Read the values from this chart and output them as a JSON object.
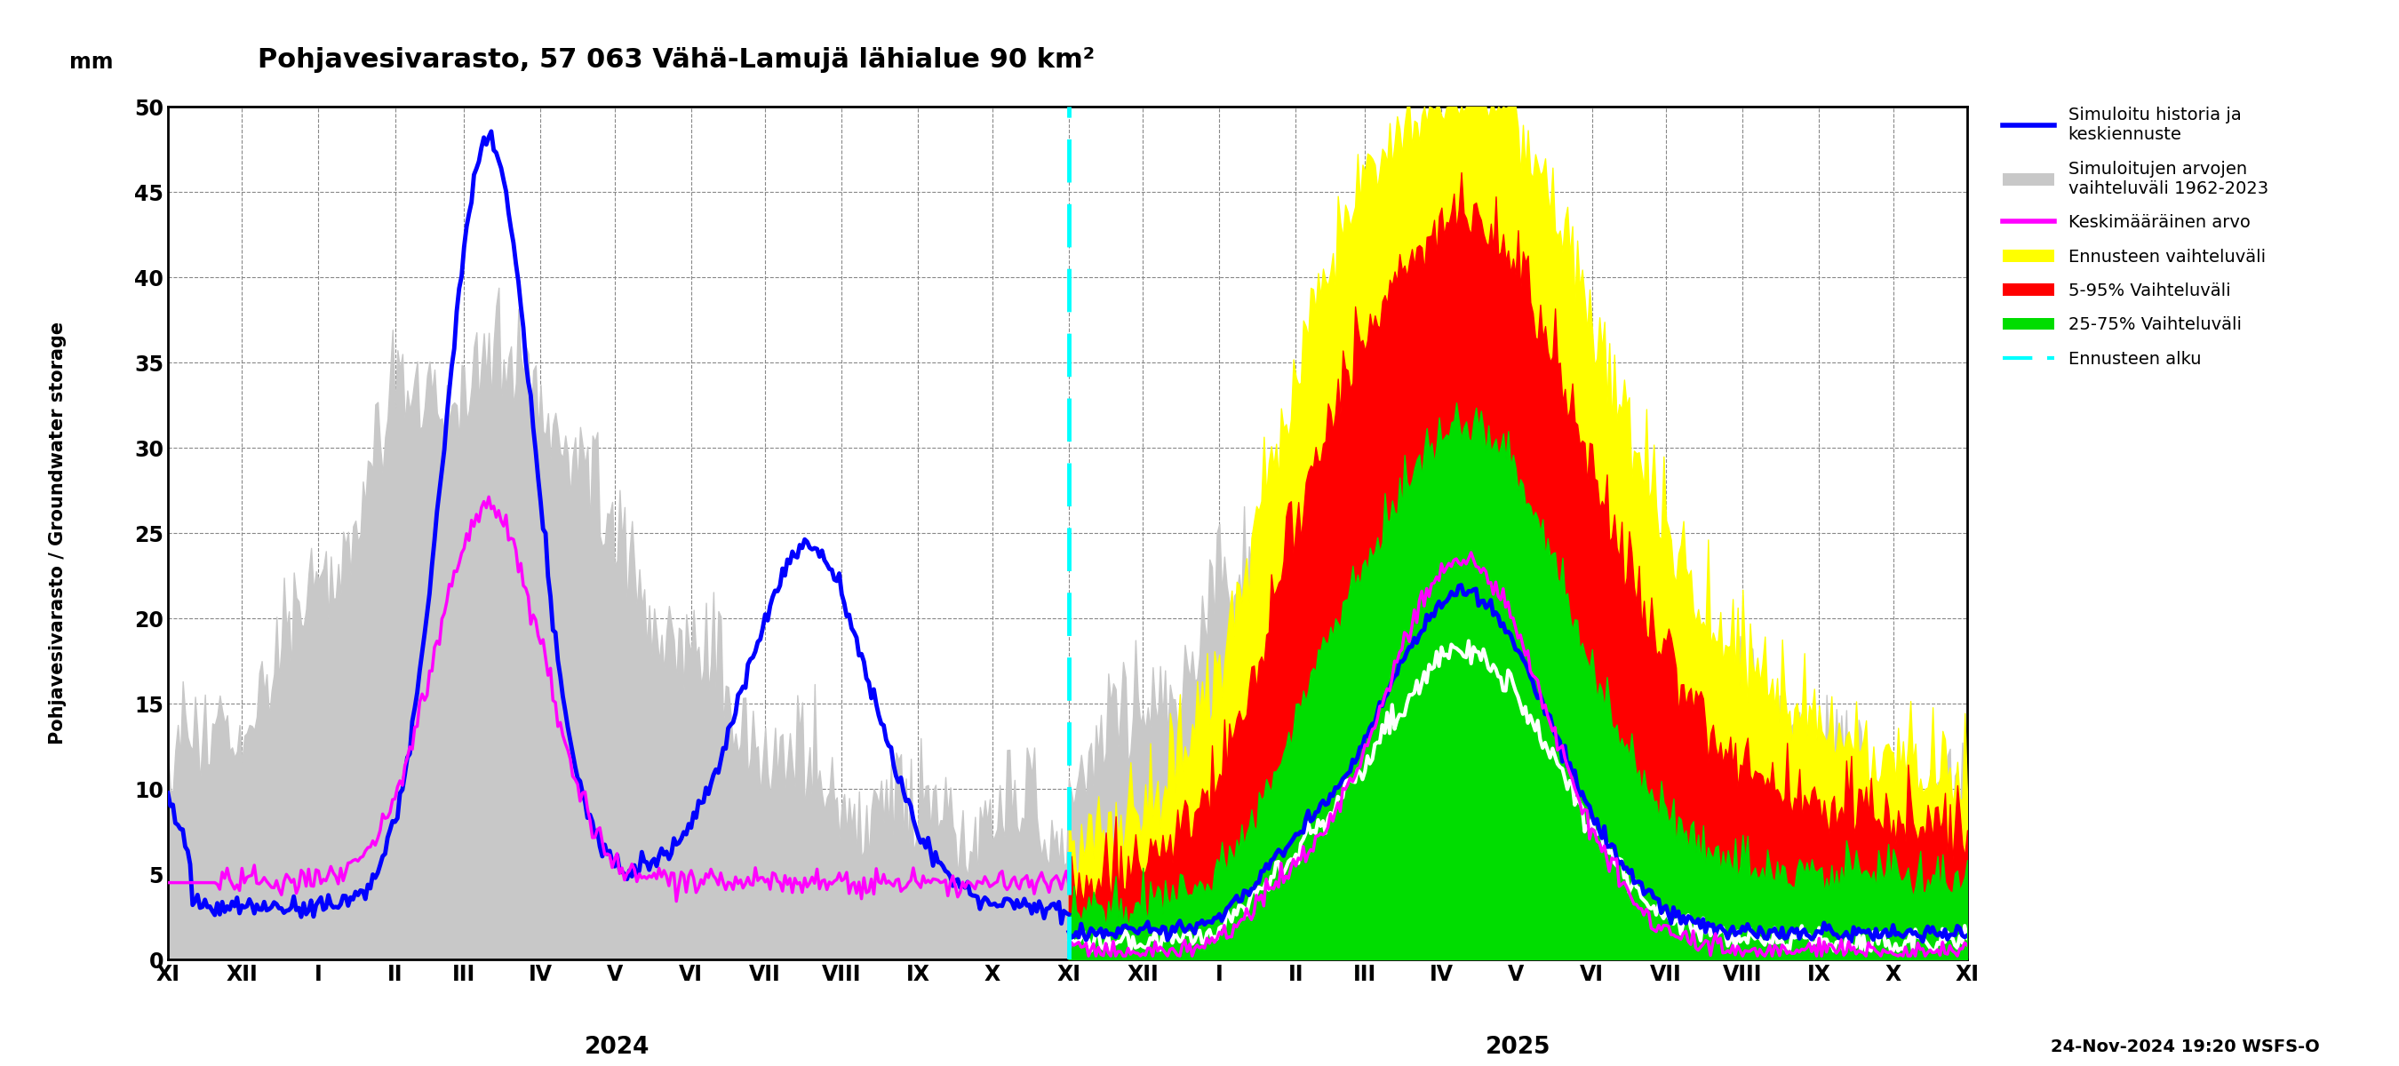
{
  "title": "Pohjavesivarasto, 57 063 Vähä-Lamujä lähialue 90 km²",
  "ylabel_left": "Pohjavesivarasto / Groundwater storage",
  "ylabel_mm": "mm",
  "ylim": [
    0,
    50
  ],
  "yticks": [
    0,
    5,
    10,
    15,
    20,
    25,
    30,
    35,
    40,
    45,
    50
  ],
  "timestamp": "24-Nov-2024 19:20 WSFS-O",
  "colors": {
    "simulated_history": "#0000ff",
    "historical_range": "#c8c8c8",
    "mean_value": "#ff00ff",
    "forecast_range": "#ffff00",
    "range_5_95": "#ff0000",
    "range_25_75": "#00dd00",
    "forecast_start": "#00ffff",
    "white_line": "#ffffff"
  },
  "legend_labels": [
    "Simuloitu historia ja\nkeskiennuste",
    "Simuloitujen arvojen\nvaihteluväli 1962-2023",
    "Keskimääräinen arvo",
    "Ennusteen vaihteluväli",
    "5-95% Vaihteluväli",
    "25-75% Vaihteluväli",
    "Ennusteen alku"
  ]
}
